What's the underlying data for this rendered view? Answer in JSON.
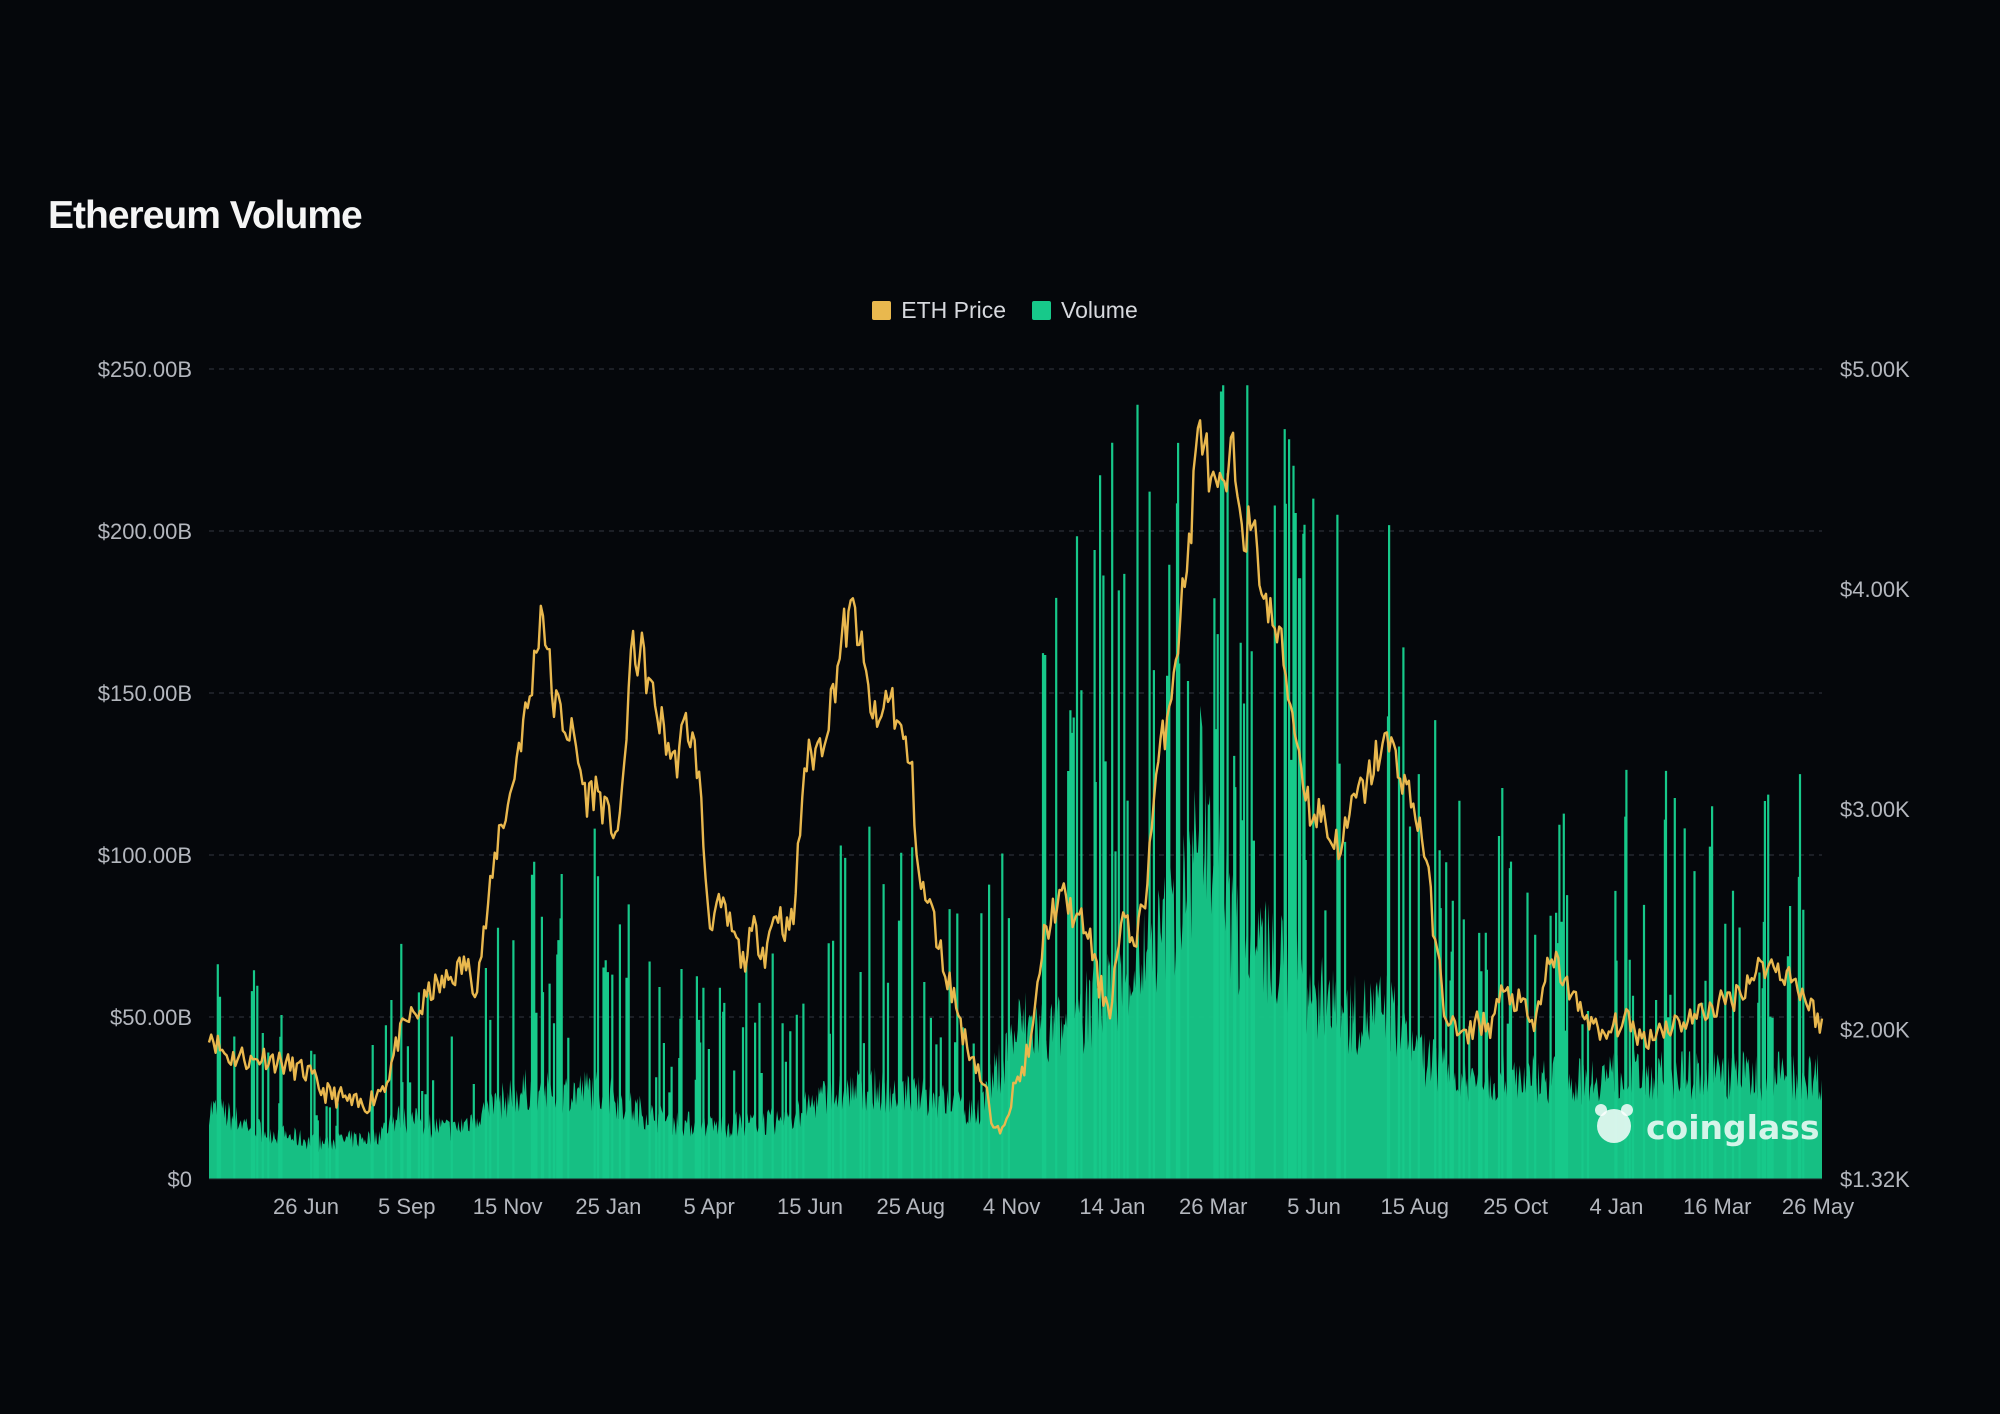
{
  "title": "Ethereum Volume",
  "legend": [
    {
      "label": "ETH Price",
      "color": "#e9b84e"
    },
    {
      "label": "Volume",
      "color": "#17c98a"
    }
  ],
  "watermark": "coinglass",
  "colors": {
    "background": "#05070b",
    "price_line": "#e9b84e",
    "volume_fill": "#17c98a",
    "grid": "#2a2e36"
  },
  "chart_data": {
    "type": "area",
    "title": "Ethereum Volume",
    "x_axis": {
      "type": "date",
      "tick_labels": [
        "26 Jun",
        "5 Sep",
        "15 Nov",
        "25 Jan",
        "5 Apr",
        "15 Jun",
        "25 Aug",
        "4 Nov",
        "14 Jan",
        "26 Mar",
        "5 Jun",
        "15 Aug",
        "25 Oct",
        "4 Jan",
        "16 Mar",
        "26 May"
      ],
      "range": [
        "2020-05-27",
        "2024-06-03"
      ]
    },
    "y_axis_left": {
      "label": "",
      "series": "Volume",
      "range": [
        0,
        250
      ],
      "unit": "B USD",
      "tick_labels": [
        "$0",
        "$50.00B",
        "$100.00B",
        "$150.00B",
        "$200.00B",
        "$250.00B"
      ],
      "tick_values": [
        0,
        50,
        100,
        150,
        200,
        250
      ]
    },
    "y_axis_right": {
      "label": "",
      "series": "ETH Price",
      "range": [
        1320,
        5000
      ],
      "unit": "USD",
      "tick_labels": [
        "$1.32K",
        "$2.00K",
        "$3.00K",
        "$4.00K",
        "$5.00K"
      ],
      "tick_values": [
        1320,
        2000,
        3000,
        4000,
        5000
      ]
    },
    "grid": true,
    "legend_position": "top-center",
    "series": [
      {
        "name": "ETH Price",
        "type": "line",
        "axis": "right",
        "color": "#e9b84e",
        "points": [
          [
            "2020-05-27",
            2000
          ],
          [
            "2020-06-05",
            1920
          ],
          [
            "2020-06-15",
            1870
          ],
          [
            "2020-06-26",
            1880
          ],
          [
            "2020-07-05",
            1850
          ],
          [
            "2020-07-15",
            1880
          ],
          [
            "2020-07-25",
            1860
          ],
          [
            "2020-08-05",
            1840
          ],
          [
            "2020-08-15",
            1820
          ],
          [
            "2020-08-25",
            1800
          ],
          [
            "2020-09-05",
            1730
          ],
          [
            "2020-09-15",
            1700
          ],
          [
            "2020-09-25",
            1690
          ],
          [
            "2020-10-05",
            1660
          ],
          [
            "2020-10-15",
            1650
          ],
          [
            "2020-10-25",
            1700
          ],
          [
            "2020-11-05",
            1770
          ],
          [
            "2020-11-15",
            1950
          ],
          [
            "2020-11-25",
            2050
          ],
          [
            "2020-12-05",
            2080
          ],
          [
            "2020-12-15",
            2180
          ],
          [
            "2020-12-25",
            2200
          ],
          [
            "2021-01-05",
            2250
          ],
          [
            "2021-01-15",
            2300
          ],
          [
            "2021-01-25",
            2200
          ],
          [
            "2021-02-05",
            2550
          ],
          [
            "2021-02-15",
            2900
          ],
          [
            "2021-02-25",
            3050
          ],
          [
            "2021-03-05",
            3300
          ],
          [
            "2021-03-15",
            3500
          ],
          [
            "2021-03-22",
            3780
          ],
          [
            "2021-03-26",
            3950
          ],
          [
            "2021-04-05",
            3500
          ],
          [
            "2021-04-15",
            3400
          ],
          [
            "2021-04-25",
            3300
          ],
          [
            "2021-05-05",
            3050
          ],
          [
            "2021-05-15",
            3100
          ],
          [
            "2021-05-25",
            2950
          ],
          [
            "2021-06-05",
            2900
          ],
          [
            "2021-06-15",
            3700
          ],
          [
            "2021-06-25",
            3700
          ],
          [
            "2021-07-05",
            3500
          ],
          [
            "2021-07-15",
            3350
          ],
          [
            "2021-07-25",
            3200
          ],
          [
            "2021-08-05",
            3400
          ],
          [
            "2021-08-15",
            3200
          ],
          [
            "2021-08-25",
            2500
          ],
          [
            "2021-09-05",
            2550
          ],
          [
            "2021-09-15",
            2450
          ],
          [
            "2021-09-25",
            2300
          ],
          [
            "2021-10-05",
            2450
          ],
          [
            "2021-10-15",
            2350
          ],
          [
            "2021-10-25",
            2550
          ],
          [
            "2021-11-04",
            2450
          ],
          [
            "2021-11-10",
            2500
          ],
          [
            "2021-11-20",
            3200
          ],
          [
            "2021-12-05",
            3300
          ],
          [
            "2021-12-15",
            3500
          ],
          [
            "2021-12-25",
            3800
          ],
          [
            "2022-01-05",
            3900
          ],
          [
            "2022-01-14",
            3600
          ],
          [
            "2022-01-25",
            3350
          ],
          [
            "2022-02-05",
            3550
          ],
          [
            "2022-02-15",
            3350
          ],
          [
            "2022-02-25",
            3200
          ],
          [
            "2022-03-05",
            2650
          ],
          [
            "2022-03-15",
            2550
          ],
          [
            "2022-03-26",
            2300
          ],
          [
            "2022-04-05",
            2150
          ],
          [
            "2022-04-15",
            1950
          ],
          [
            "2022-04-25",
            1850
          ],
          [
            "2022-05-05",
            1700
          ],
          [
            "2022-05-12",
            1500
          ],
          [
            "2022-05-20",
            1600
          ],
          [
            "2022-06-05",
            1800
          ],
          [
            "2022-06-15",
            1950
          ],
          [
            "2022-06-25",
            2400
          ],
          [
            "2022-07-05",
            2550
          ],
          [
            "2022-07-15",
            2600
          ],
          [
            "2022-07-25",
            2500
          ],
          [
            "2022-08-05",
            2450
          ],
          [
            "2022-08-15",
            2200
          ],
          [
            "2022-08-25",
            2100
          ],
          [
            "2022-09-05",
            2500
          ],
          [
            "2022-09-15",
            2400
          ],
          [
            "2022-09-25",
            2550
          ],
          [
            "2022-10-05",
            3100
          ],
          [
            "2022-10-15",
            3400
          ],
          [
            "2022-10-25",
            3750
          ],
          [
            "2022-11-05",
            4200
          ],
          [
            "2022-11-10",
            4500
          ],
          [
            "2022-11-15",
            4800
          ],
          [
            "2022-11-25",
            4450
          ],
          [
            "2022-12-05",
            4400
          ],
          [
            "2022-12-15",
            4600
          ],
          [
            "2022-12-25",
            4300
          ],
          [
            "2023-01-05",
            4200
          ],
          [
            "2023-01-15",
            3900
          ],
          [
            "2023-01-25",
            3800
          ],
          [
            "2023-02-05",
            3500
          ],
          [
            "2023-02-15",
            3200
          ],
          [
            "2023-02-25",
            2950
          ],
          [
            "2023-03-05",
            3000
          ],
          [
            "2023-03-15",
            2850
          ],
          [
            "2023-03-25",
            2850
          ],
          [
            "2023-04-05",
            3050
          ],
          [
            "2023-04-15",
            3100
          ],
          [
            "2023-04-25",
            3250
          ],
          [
            "2023-05-05",
            3300
          ],
          [
            "2023-05-15",
            3200
          ],
          [
            "2023-05-25",
            3050
          ],
          [
            "2023-06-05",
            2900
          ],
          [
            "2023-06-15",
            2500
          ],
          [
            "2023-06-25",
            2100
          ],
          [
            "2023-07-05",
            2000
          ],
          [
            "2023-07-15",
            1950
          ],
          [
            "2023-07-25",
            2050
          ],
          [
            "2023-08-05",
            2000
          ],
          [
            "2023-08-15",
            2150
          ],
          [
            "2023-08-25",
            2150
          ],
          [
            "2023-09-05",
            2100
          ],
          [
            "2023-09-15",
            2000
          ],
          [
            "2023-09-25",
            2250
          ],
          [
            "2023-10-05",
            2300
          ],
          [
            "2023-10-15",
            2200
          ],
          [
            "2023-10-25",
            2100
          ],
          [
            "2023-11-05",
            2050
          ],
          [
            "2023-11-15",
            1950
          ]
        ]
      },
      {
        "name": "Volume",
        "type": "area",
        "axis": "left",
        "color": "#17c98a",
        "points": [
          [
            "2020-05-27",
            22
          ],
          [
            "2020-07-15",
            15
          ],
          [
            "2020-09-05",
            11
          ],
          [
            "2020-10-25",
            13
          ],
          [
            "2020-11-15",
            19
          ],
          [
            "2021-01-05",
            15
          ],
          [
            "2021-02-05",
            22
          ],
          [
            "2021-03-15",
            28
          ],
          [
            "2021-04-05",
            26
          ],
          [
            "2021-05-15",
            28
          ],
          [
            "2021-06-15",
            22
          ],
          [
            "2021-07-15",
            18
          ],
          [
            "2021-08-25",
            16
          ],
          [
            "2021-09-25",
            17
          ],
          [
            "2021-11-04",
            18
          ],
          [
            "2021-12-05",
            25
          ],
          [
            "2022-01-14",
            28
          ],
          [
            "2022-02-25",
            26
          ],
          [
            "2022-03-26",
            24
          ],
          [
            "2022-04-25",
            20
          ],
          [
            "2022-06-05",
            48
          ],
          [
            "2022-07-05",
            45
          ],
          [
            "2022-08-05",
            52
          ],
          [
            "2022-09-05",
            62
          ],
          [
            "2022-10-05",
            72
          ],
          [
            "2022-11-05",
            90
          ],
          [
            "2022-11-15",
            118
          ],
          [
            "2022-12-15",
            75
          ],
          [
            "2023-01-15",
            70
          ],
          [
            "2023-02-25",
            58
          ],
          [
            "2023-03-25",
            50
          ],
          [
            "2023-05-05",
            52
          ],
          [
            "2023-06-05",
            38
          ],
          [
            "2023-07-15",
            30
          ],
          [
            "2023-08-25",
            32
          ],
          [
            "2023-09-25",
            31
          ],
          [
            "2023-10-25",
            30
          ],
          [
            "2023-11-15",
            32
          ]
        ]
      }
    ]
  }
}
